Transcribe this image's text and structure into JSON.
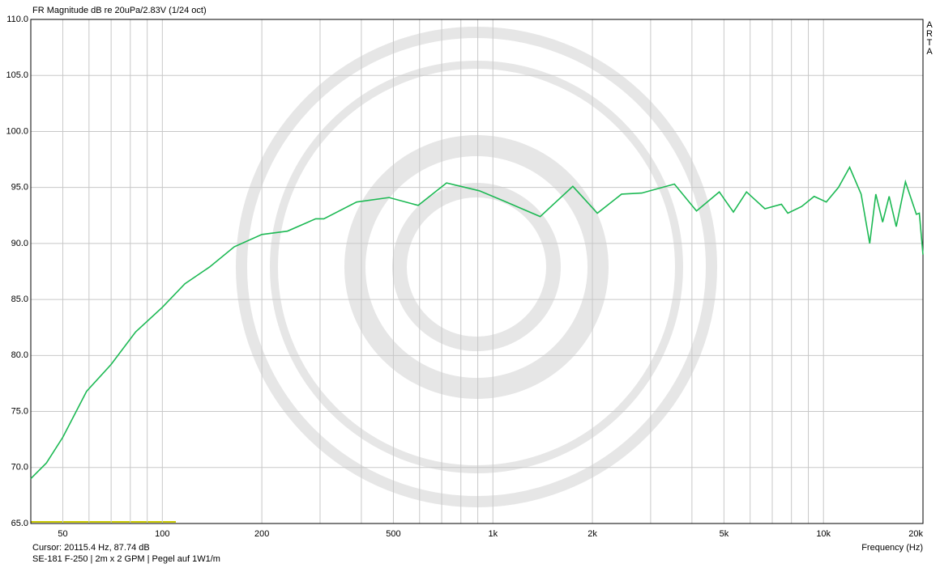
{
  "chart_data": {
    "type": "line",
    "title": "FR Magnitude dB re 20uPa/2.83V (1/24 oct)",
    "x_label": "Frequency (Hz)",
    "brand": "ARTA",
    "cursor": "Cursor: 20115.4 Hz, 87.74 dB",
    "note": "SE-181 F-250 | 2m x 2 GPM | Pegel auf 1W1/m",
    "xscale": "log",
    "xlim": [
      40,
      20000
    ],
    "ylim": [
      65,
      110
    ],
    "xticks": [
      50,
      100,
      200,
      500,
      {
        "value": 1000,
        "label": "1k"
      },
      {
        "value": 2000,
        "label": "2k"
      },
      {
        "value": 5000,
        "label": "5k"
      },
      {
        "value": 10000,
        "label": "10k"
      },
      {
        "value": 20000,
        "label": "20k"
      }
    ],
    "x_gridlines": [
      40,
      60,
      70,
      80,
      90,
      300,
      400,
      600,
      700,
      800,
      900,
      3000,
      4000,
      6000,
      7000,
      8000,
      9000
    ],
    "yticks": [
      {
        "value": 65,
        "label": "65.0"
      },
      {
        "value": 70,
        "label": "70.0"
      },
      {
        "value": 75,
        "label": "75.0"
      },
      {
        "value": 80,
        "label": "80.0"
      },
      {
        "value": 85,
        "label": "85.0"
      },
      {
        "value": 90,
        "label": "90.0"
      },
      {
        "value": 95,
        "label": "95.0"
      },
      {
        "value": 100,
        "label": "100.0"
      },
      {
        "value": 105,
        "label": "105.0"
      },
      {
        "value": 110,
        "label": "110.0"
      }
    ],
    "grid": true,
    "series": [
      {
        "color": "#1db954",
        "x": [
          40,
          44.6,
          50,
          59,
          70,
          83,
          100,
          117,
          139,
          165,
          200,
          239,
          291,
          308,
          387,
          485,
          594,
          724,
          910,
          1077,
          1390,
          1745,
          2070,
          2450,
          2820,
          3540,
          4130,
          4840,
          5340,
          5850,
          6650,
          7460,
          7800,
          8590,
          9370,
          10200,
          11100,
          12000,
          13000,
          13800,
          14400,
          15100,
          15800,
          16600,
          17700,
          19100,
          19500,
          20000
        ],
        "values": [
          69.0,
          70.4,
          72.7,
          76.8,
          79.2,
          82.1,
          84.3,
          86.4,
          87.9,
          89.7,
          90.8,
          91.1,
          92.2,
          92.2,
          93.7,
          94.1,
          93.4,
          95.4,
          94.7,
          93.8,
          92.4,
          95.1,
          92.7,
          94.4,
          94.5,
          95.3,
          92.9,
          94.6,
          92.8,
          94.6,
          93.1,
          93.5,
          92.7,
          93.3,
          94.2,
          93.7,
          95.0,
          96.8,
          94.4,
          90.0,
          94.4,
          91.9,
          94.2,
          91.5,
          95.5,
          92.6,
          92.7,
          89.0
        ]
      }
    ]
  }
}
